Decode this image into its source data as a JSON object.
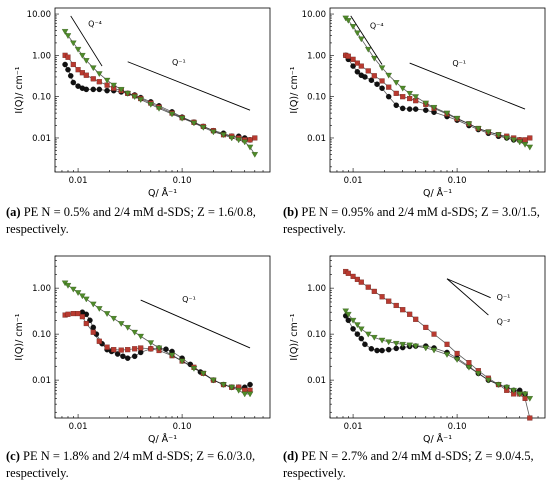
{
  "figure": {
    "captions": [
      {
        "tag": "(a)",
        "text": "PE N = 0.5% and 2/4 mM d-SDS; Z = 1.6/0.8, respectively."
      },
      {
        "tag": "(b)",
        "text": "PE N = 0.95% and 2/4 mM d-SDS; Z = 3.0/1.5, respectively."
      },
      {
        "tag": "(c)",
        "text": "PE N = 1.8% and 2/4 mM d-SDS; Z = 6.0/3.0, respectively."
      },
      {
        "tag": "(d)",
        "text": "PE N = 2.7% and 2/4 mM d-SDS; Z = 9.0/4.5, respectively."
      }
    ],
    "colors": {
      "black": "#111111",
      "red": "#b83a30",
      "green": "#4f8a2a",
      "fit": "#222222"
    }
  },
  "chart_data": [
    {
      "type": "scatter",
      "panel": "a",
      "xlabel": "Q/ Å⁻¹",
      "ylabel": "I(Q)/ cm⁻¹",
      "xscale": "log",
      "yscale": "log",
      "xlim": [
        0.006,
        0.7
      ],
      "ylim": [
        0.0015,
        14
      ],
      "xticks": [
        0.01,
        0.1
      ],
      "xticklabels": [
        "0.01",
        "0.10"
      ],
      "yticks": [
        0.01,
        0.1,
        1,
        10
      ],
      "yticklabels": [
        "0.01",
        "0.10",
        "1.00",
        "10.00"
      ],
      "annotations": [
        {
          "label": "Q⁻⁴",
          "line": [
            [
              0.0085,
              9.0
            ],
            [
              0.017,
              0.55
            ]
          ],
          "text_at": [
            0.0125,
            5.0
          ]
        },
        {
          "label": "Q⁻¹",
          "line": [
            [
              0.03,
              0.7
            ],
            [
              0.45,
              0.047
            ]
          ],
          "text_at": [
            0.08,
            0.58
          ]
        }
      ],
      "series": [
        {
          "color": "black",
          "marker": "circle",
          "x": [
            0.0075,
            0.008,
            0.0085,
            0.009,
            0.01,
            0.011,
            0.012,
            0.014,
            0.016,
            0.019,
            0.022,
            0.026,
            0.03,
            0.035,
            0.04,
            0.05,
            0.06,
            0.08,
            0.1,
            0.13,
            0.16,
            0.2,
            0.25,
            0.3,
            0.35,
            0.4,
            0.45
          ],
          "y": [
            0.6,
            0.45,
            0.32,
            0.22,
            0.18,
            0.16,
            0.15,
            0.15,
            0.15,
            0.14,
            0.14,
            0.13,
            0.12,
            0.11,
            0.095,
            0.075,
            0.06,
            0.043,
            0.032,
            0.024,
            0.019,
            0.015,
            0.013,
            0.011,
            0.011,
            0.01,
            0.009
          ]
        },
        {
          "color": "red",
          "marker": "square",
          "x": [
            0.0075,
            0.008,
            0.009,
            0.01,
            0.011,
            0.012,
            0.014,
            0.016,
            0.019,
            0.022,
            0.026,
            0.03,
            0.035,
            0.04,
            0.05,
            0.06,
            0.08,
            0.1,
            0.13,
            0.16,
            0.2,
            0.25,
            0.3,
            0.35,
            0.4,
            0.45,
            0.5
          ],
          "y": [
            1.0,
            0.9,
            0.6,
            0.45,
            0.38,
            0.33,
            0.27,
            0.23,
            0.19,
            0.16,
            0.14,
            0.12,
            0.105,
            0.09,
            0.07,
            0.056,
            0.04,
            0.031,
            0.024,
            0.019,
            0.015,
            0.012,
            0.011,
            0.01,
            0.009,
            0.009,
            0.01
          ]
        },
        {
          "color": "green",
          "marker": "triangle-down",
          "x": [
            0.0075,
            0.008,
            0.009,
            0.01,
            0.011,
            0.012,
            0.014,
            0.016,
            0.019,
            0.022,
            0.026,
            0.03,
            0.035,
            0.04,
            0.05,
            0.06,
            0.08,
            0.1,
            0.13,
            0.16,
            0.2,
            0.25,
            0.3,
            0.35,
            0.4,
            0.45,
            0.5
          ],
          "y": [
            3.8,
            3.0,
            2.0,
            1.4,
            1.0,
            0.75,
            0.5,
            0.36,
            0.25,
            0.19,
            0.15,
            0.12,
            0.1,
            0.085,
            0.065,
            0.052,
            0.038,
            0.03,
            0.023,
            0.018,
            0.014,
            0.012,
            0.01,
            0.009,
            0.008,
            0.006,
            0.004
          ]
        }
      ]
    },
    {
      "type": "scatter",
      "panel": "b",
      "xlabel": "Q/ Å⁻¹",
      "ylabel": "I(Q)/ cm⁻¹",
      "xscale": "log",
      "yscale": "log",
      "xlim": [
        0.006,
        0.7
      ],
      "ylim": [
        0.0015,
        14
      ],
      "xticks": [
        0.01,
        0.1
      ],
      "xticklabels": [
        "0.01",
        "0.10"
      ],
      "yticks": [
        0.01,
        0.1,
        1,
        10
      ],
      "yticklabels": [
        "0.01",
        "0.10",
        "1.00",
        "10.00"
      ],
      "annotations": [
        {
          "label": "Q⁻⁴",
          "line": [
            [
              0.0095,
              9.0
            ],
            [
              0.019,
              0.6
            ]
          ],
          "text_at": [
            0.0145,
            4.5
          ]
        },
        {
          "label": "Q⁻¹",
          "line": [
            [
              0.035,
              0.65
            ],
            [
              0.45,
              0.05
            ]
          ],
          "text_at": [
            0.09,
            0.55
          ]
        }
      ],
      "series": [
        {
          "color": "black",
          "marker": "circle",
          "x": [
            0.0085,
            0.009,
            0.01,
            0.011,
            0.012,
            0.013,
            0.015,
            0.017,
            0.019,
            0.022,
            0.026,
            0.03,
            0.035,
            0.04,
            0.05,
            0.06,
            0.08,
            0.1,
            0.13,
            0.16,
            0.2,
            0.25,
            0.3,
            0.35,
            0.4,
            0.45
          ],
          "y": [
            1.0,
            0.8,
            0.55,
            0.4,
            0.33,
            0.3,
            0.25,
            0.2,
            0.16,
            0.1,
            0.062,
            0.052,
            0.05,
            0.05,
            0.047,
            0.042,
            0.033,
            0.027,
            0.02,
            0.016,
            0.013,
            0.011,
            0.01,
            0.009,
            0.009,
            0.008
          ]
        },
        {
          "color": "red",
          "marker": "square",
          "x": [
            0.0085,
            0.009,
            0.01,
            0.011,
            0.012,
            0.014,
            0.016,
            0.019,
            0.022,
            0.026,
            0.03,
            0.035,
            0.04,
            0.05,
            0.06,
            0.08,
            0.1,
            0.13,
            0.16,
            0.2,
            0.25,
            0.3,
            0.35,
            0.4,
            0.45,
            0.5
          ],
          "y": [
            1.0,
            0.95,
            0.8,
            0.65,
            0.55,
            0.42,
            0.32,
            0.24,
            0.17,
            0.12,
            0.1,
            0.09,
            0.08,
            0.065,
            0.052,
            0.038,
            0.029,
            0.022,
            0.017,
            0.014,
            0.012,
            0.011,
            0.01,
            0.009,
            0.009,
            0.01
          ]
        },
        {
          "color": "green",
          "marker": "triangle-down",
          "x": [
            0.0085,
            0.009,
            0.01,
            0.011,
            0.012,
            0.014,
            0.016,
            0.019,
            0.022,
            0.026,
            0.03,
            0.035,
            0.04,
            0.05,
            0.06,
            0.08,
            0.1,
            0.13,
            0.16,
            0.2,
            0.25,
            0.3,
            0.35,
            0.4,
            0.45,
            0.5
          ],
          "y": [
            8.0,
            7.0,
            5.0,
            3.5,
            2.5,
            1.4,
            0.85,
            0.5,
            0.33,
            0.22,
            0.16,
            0.12,
            0.1,
            0.07,
            0.055,
            0.04,
            0.03,
            0.022,
            0.017,
            0.014,
            0.012,
            0.01,
            0.009,
            0.008,
            0.007,
            0.006
          ]
        }
      ]
    },
    {
      "type": "scatter",
      "panel": "c",
      "xlabel": "Q/ Å⁻¹",
      "ylabel": "I(Q)/ cm⁻¹",
      "xscale": "log",
      "yscale": "log",
      "xlim": [
        0.006,
        0.7
      ],
      "ylim": [
        0.0015,
        5
      ],
      "xticks": [
        0.01,
        0.1
      ],
      "xticklabels": [
        "0.01",
        "0.10"
      ],
      "yticks": [
        0.01,
        0.1,
        1
      ],
      "yticklabels": [
        "0.01",
        "0.10",
        "1.00"
      ],
      "annotations": [
        {
          "label": "Q⁻¹",
          "line": [
            [
              0.04,
              0.55
            ],
            [
              0.45,
              0.05
            ]
          ],
          "text_at": [
            0.1,
            0.5
          ]
        }
      ],
      "series": [
        {
          "color": "black",
          "marker": "circle",
          "x": [
            0.011,
            0.012,
            0.013,
            0.014,
            0.015,
            0.017,
            0.019,
            0.021,
            0.024,
            0.027,
            0.03,
            0.035,
            0.04,
            0.05,
            0.06,
            0.07,
            0.08,
            0.1,
            0.12,
            0.15,
            0.2,
            0.25,
            0.3,
            0.35,
            0.4,
            0.45
          ],
          "y": [
            0.3,
            0.27,
            0.2,
            0.14,
            0.1,
            0.062,
            0.046,
            0.042,
            0.037,
            0.033,
            0.03,
            0.033,
            0.04,
            0.048,
            0.05,
            0.047,
            0.042,
            0.03,
            0.022,
            0.015,
            0.01,
            0.008,
            0.007,
            0.007,
            0.007,
            0.008
          ]
        },
        {
          "color": "red",
          "marker": "square",
          "x": [
            0.0075,
            0.008,
            0.009,
            0.01,
            0.011,
            0.012,
            0.014,
            0.016,
            0.019,
            0.022,
            0.026,
            0.03,
            0.035,
            0.04,
            0.05,
            0.06,
            0.08,
            0.1,
            0.13,
            0.16,
            0.2,
            0.25,
            0.3,
            0.35,
            0.4,
            0.45
          ],
          "y": [
            0.26,
            0.27,
            0.28,
            0.28,
            0.24,
            0.17,
            0.11,
            0.07,
            0.052,
            0.046,
            0.045,
            0.046,
            0.048,
            0.05,
            0.048,
            0.044,
            0.034,
            0.026,
            0.019,
            0.014,
            0.01,
            0.008,
            0.007,
            0.007,
            0.006,
            0.006
          ]
        },
        {
          "color": "green",
          "marker": "triangle-down",
          "x": [
            0.0075,
            0.008,
            0.009,
            0.01,
            0.011,
            0.012,
            0.014,
            0.016,
            0.019,
            0.022,
            0.026,
            0.03,
            0.035,
            0.04,
            0.05,
            0.06,
            0.08,
            0.1,
            0.13,
            0.16,
            0.2,
            0.25,
            0.3,
            0.35,
            0.4,
            0.45
          ],
          "y": [
            1.3,
            1.15,
            0.95,
            0.8,
            0.68,
            0.58,
            0.45,
            0.36,
            0.28,
            0.22,
            0.17,
            0.14,
            0.11,
            0.09,
            0.065,
            0.05,
            0.035,
            0.026,
            0.018,
            0.014,
            0.01,
            0.008,
            0.007,
            0.006,
            0.005,
            0.005
          ]
        }
      ]
    },
    {
      "type": "scatter",
      "panel": "d",
      "xlabel": "Q/ Å⁻¹",
      "ylabel": "I(Q)/ cm⁻¹",
      "xscale": "log",
      "yscale": "log",
      "xlim": [
        0.006,
        0.7
      ],
      "ylim": [
        0.0015,
        5
      ],
      "xticks": [
        0.01,
        0.1
      ],
      "xticklabels": [
        "0.01",
        "0.10"
      ],
      "yticks": [
        0.01,
        0.1,
        1
      ],
      "yticklabels": [
        "0.01",
        "0.10",
        "1.00"
      ],
      "annotations": [
        {
          "label": "Q⁻¹",
          "line": [
            [
              0.08,
              1.6
            ],
            [
              0.21,
              0.62
            ]
          ],
          "text_at": [
            0.24,
            0.55
          ]
        },
        {
          "label": "Q⁻²",
          "line": [
            [
              0.08,
              1.6
            ],
            [
              0.2,
              0.26
            ]
          ],
          "text_at": [
            0.24,
            0.16
          ]
        }
      ],
      "series": [
        {
          "color": "black",
          "marker": "circle",
          "x": [
            0.0085,
            0.009,
            0.01,
            0.011,
            0.012,
            0.013,
            0.015,
            0.017,
            0.019,
            0.022,
            0.026,
            0.03,
            0.035,
            0.04,
            0.05,
            0.06,
            0.08,
            0.1,
            0.13,
            0.16,
            0.2,
            0.25,
            0.3,
            0.35,
            0.4,
            0.45
          ],
          "y": [
            0.25,
            0.2,
            0.13,
            0.1,
            0.08,
            0.06,
            0.048,
            0.044,
            0.044,
            0.046,
            0.049,
            0.051,
            0.054,
            0.055,
            0.055,
            0.05,
            0.04,
            0.03,
            0.02,
            0.014,
            0.01,
            0.008,
            0.007,
            0.006,
            0.006,
            0.005
          ]
        },
        {
          "color": "red",
          "marker": "square",
          "x": [
            0.0085,
            0.009,
            0.01,
            0.011,
            0.012,
            0.014,
            0.016,
            0.019,
            0.022,
            0.026,
            0.03,
            0.035,
            0.04,
            0.05,
            0.06,
            0.08,
            0.1,
            0.13,
            0.16,
            0.2,
            0.25,
            0.3,
            0.35,
            0.4,
            0.45,
            0.5
          ],
          "y": [
            2.3,
            2.1,
            1.8,
            1.55,
            1.35,
            1.05,
            0.85,
            0.65,
            0.52,
            0.42,
            0.34,
            0.27,
            0.21,
            0.14,
            0.1,
            0.06,
            0.038,
            0.024,
            0.016,
            0.011,
            0.008,
            0.006,
            0.005,
            0.005,
            0.004,
            0.0015
          ]
        },
        {
          "color": "green",
          "marker": "triangle-down",
          "x": [
            0.0085,
            0.009,
            0.01,
            0.011,
            0.012,
            0.014,
            0.016,
            0.019,
            0.022,
            0.026,
            0.03,
            0.035,
            0.04,
            0.05,
            0.06,
            0.08,
            0.1,
            0.13,
            0.16,
            0.2,
            0.25,
            0.3,
            0.35,
            0.4,
            0.45,
            0.5
          ],
          "y": [
            0.32,
            0.27,
            0.2,
            0.16,
            0.13,
            0.1,
            0.085,
            0.074,
            0.068,
            0.063,
            0.06,
            0.058,
            0.055,
            0.05,
            0.045,
            0.036,
            0.028,
            0.019,
            0.014,
            0.01,
            0.008,
            0.007,
            0.006,
            0.005,
            0.005,
            0.004
          ]
        }
      ]
    }
  ]
}
